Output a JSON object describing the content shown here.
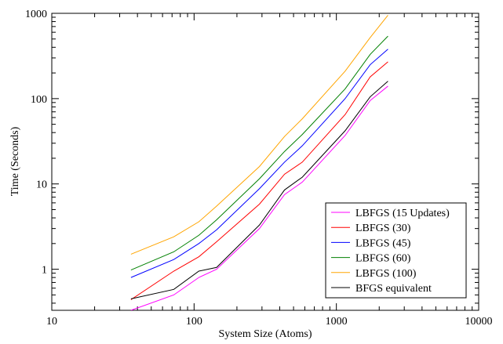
{
  "chart_data": {
    "type": "line",
    "title": "",
    "xlabel": "System Size (Atoms)",
    "ylabel": "Time (Seconds)",
    "xscale": "log",
    "yscale": "log",
    "xlim": [
      10,
      10000
    ],
    "ylim": [
      0.33,
      1000
    ],
    "x_ticks": [
      10,
      100,
      1000,
      10000
    ],
    "x_tick_labels": [
      "10",
      "100",
      "1000",
      "10000"
    ],
    "y_ticks": [
      1,
      10,
      100,
      1000
    ],
    "y_tick_labels": [
      "1",
      "10",
      "100",
      "1000"
    ],
    "grid": false,
    "legend_position": "bottom-right",
    "x": [
      36,
      72,
      108,
      144,
      288,
      432,
      576,
      1152,
      1728,
      2304
    ],
    "series": [
      {
        "name": "LBFGS (15 Updates)",
        "color": "#ff00ff",
        "values": [
          0.33,
          0.5,
          0.8,
          1.0,
          3.0,
          7.5,
          10.5,
          37,
          95,
          140
        ]
      },
      {
        "name": "LBFGS (30)",
        "color": "#ff0000",
        "values": [
          0.44,
          0.95,
          1.4,
          2.1,
          5.8,
          13,
          18,
          65,
          180,
          270
        ]
      },
      {
        "name": "LBFGS (45)",
        "color": "#0000ff",
        "values": [
          0.8,
          1.3,
          2.0,
          2.9,
          8.8,
          18,
          28,
          100,
          250,
          380
        ]
      },
      {
        "name": "LBFGS (60)",
        "color": "#008000",
        "values": [
          0.98,
          1.6,
          2.5,
          3.8,
          11.5,
          24,
          38,
          130,
          330,
          540
        ]
      },
      {
        "name": "LBFGS (100)",
        "color": "#ffa500",
        "values": [
          1.5,
          2.4,
          3.6,
          5.5,
          16,
          36,
          58,
          210,
          520,
          950
        ]
      },
      {
        "name": "BFGS equivalent",
        "color": "#000000",
        "values": [
          0.45,
          0.58,
          0.95,
          1.05,
          3.3,
          8.5,
          12,
          42,
          105,
          160
        ]
      }
    ]
  },
  "axis_series_colors_order": [
    "#ff00ff",
    "#ff0000",
    "#0000ff",
    "#008000",
    "#ffa500",
    "#000000"
  ]
}
